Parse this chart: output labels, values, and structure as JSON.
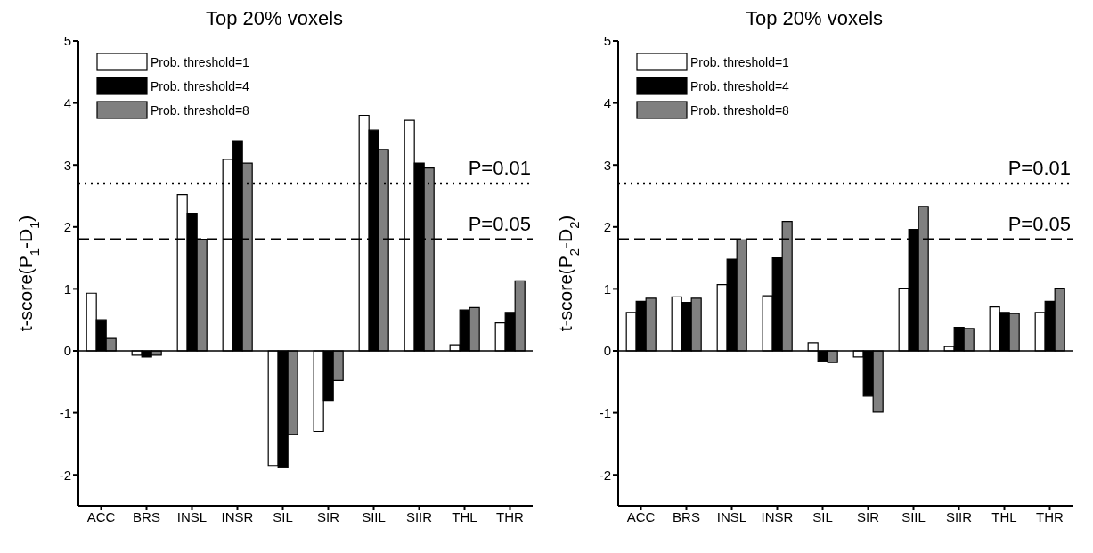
{
  "chart_data": [
    {
      "type": "bar",
      "title": "Top 20% voxels",
      "ylabel": "t-score(P$_{1}$-D$_{1}$)",
      "categories": [
        "ACC",
        "BRS",
        "INSL",
        "INSR",
        "SIL",
        "SIR",
        "SIIL",
        "SIIR",
        "THL",
        "THR"
      ],
      "series": [
        {
          "name": "Prob. threshold=1",
          "color": "#ffffff",
          "values": [
            0.93,
            -0.07,
            2.52,
            3.09,
            -1.85,
            -1.3,
            3.8,
            3.72,
            0.1,
            0.45
          ]
        },
        {
          "name": "Prob. threshold=4",
          "color": "#000000",
          "values": [
            0.5,
            -0.1,
            2.22,
            3.39,
            -1.88,
            -0.8,
            3.56,
            3.03,
            0.66,
            0.62
          ]
        },
        {
          "name": "Prob. threshold=8",
          "color": "#808080",
          "values": [
            0.2,
            -0.07,
            1.8,
            3.03,
            -1.35,
            -0.48,
            3.25,
            2.95,
            0.7,
            1.13
          ]
        }
      ],
      "ylim": [
        -2.5,
        5
      ],
      "yticks": [
        -2,
        -1,
        0,
        1,
        2,
        3,
        4,
        5
      ],
      "grid": false,
      "legend": "top left",
      "annotations": [
        {
          "text": "P=0.01",
          "y": 2.7
        },
        {
          "text": "P=0.05",
          "y": 1.8
        }
      ],
      "ref_lines": [
        {
          "axis": "y",
          "value": 2.7,
          "line_style": "dotted"
        },
        {
          "axis": "y",
          "value": 1.8,
          "line_style": "dashed"
        },
        {
          "axis": "y",
          "value": 0,
          "line_style": "solid"
        }
      ]
    },
    {
      "type": "bar",
      "title": "Top 20% voxels",
      "ylabel": "t-score(P$_{2}$-D$_{2}$)",
      "categories": [
        "ACC",
        "BRS",
        "INSL",
        "INSR",
        "SIL",
        "SIR",
        "SIIL",
        "SIIR",
        "THL",
        "THR"
      ],
      "series": [
        {
          "name": "Prob. threshold=1",
          "color": "#ffffff",
          "values": [
            0.62,
            0.87,
            1.07,
            0.89,
            0.13,
            -0.1,
            1.01,
            0.07,
            0.71,
            0.62
          ]
        },
        {
          "name": "Prob. threshold=4",
          "color": "#000000",
          "values": [
            0.8,
            0.78,
            1.48,
            1.5,
            -0.17,
            -0.73,
            1.96,
            0.38,
            0.62,
            0.8
          ]
        },
        {
          "name": "Prob. threshold=8",
          "color": "#808080",
          "values": [
            0.85,
            0.85,
            1.79,
            2.09,
            -0.19,
            -0.99,
            2.33,
            0.36,
            0.6,
            1.01
          ]
        }
      ],
      "ylim": [
        -2.5,
        5
      ],
      "yticks": [
        -2,
        -1,
        0,
        1,
        2,
        3,
        4,
        5
      ],
      "grid": false,
      "legend": "top left",
      "annotations": [
        {
          "text": "P=0.01",
          "y": 2.7
        },
        {
          "text": "P=0.05",
          "y": 1.8
        }
      ],
      "ref_lines": [
        {
          "axis": "y",
          "value": 2.7,
          "line_style": "dotted"
        },
        {
          "axis": "y",
          "value": 1.8,
          "line_style": "dashed"
        },
        {
          "axis": "y",
          "value": 0,
          "line_style": "solid"
        }
      ]
    }
  ]
}
